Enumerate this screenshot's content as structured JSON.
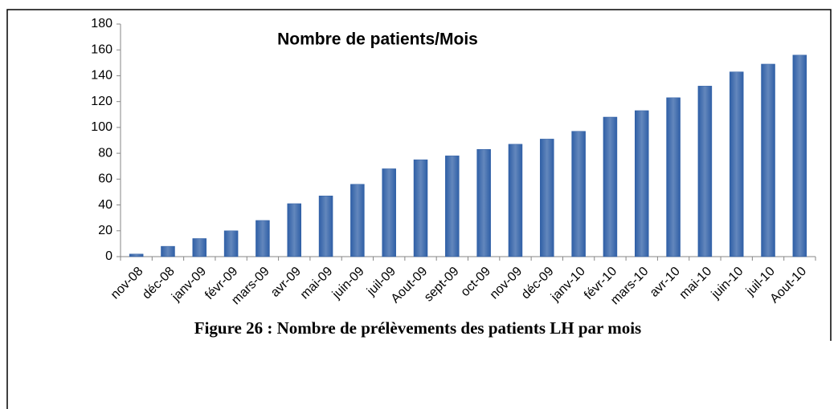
{
  "chart_data": {
    "type": "bar",
    "title": "Nombre de patients/Mois",
    "caption": "Figure 26 : Nombre de prélèvements des patients LH par mois",
    "categories": [
      "nov-08",
      "déc-08",
      "janv-09",
      "févr-09",
      "mars-09",
      "avr-09",
      "mai-09",
      "juin-09",
      "juil-09",
      "Aout-09",
      "sept-09",
      "oct-09",
      "nov-09",
      "déc-09",
      "janv-10",
      "févr-10",
      "mars-10",
      "avr-10",
      "mai-10",
      "juin-10",
      "juil-10",
      "Aout-10"
    ],
    "values": [
      2,
      8,
      14,
      20,
      28,
      41,
      47,
      56,
      68,
      75,
      78,
      83,
      87,
      91,
      97,
      108,
      113,
      123,
      132,
      143,
      149,
      156
    ],
    "color": "#2f5fa6",
    "ylim": [
      0,
      180
    ],
    "yticks": [
      0,
      20,
      40,
      60,
      80,
      100,
      120,
      140,
      160,
      180
    ],
    "grid": false
  }
}
